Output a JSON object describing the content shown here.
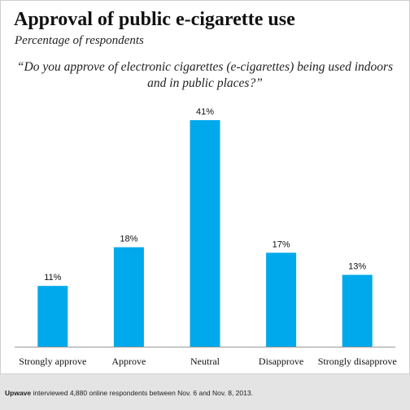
{
  "title": "Approval of public e-cigarette use",
  "subtitle": "Percentage of respondents",
  "question": "“Do you approve of electronic cigarettes (e-cigarettes) being used indoors and in public places?”",
  "footer": {
    "brand": "Upwave",
    "text": " interviewed 4,880 online respondents between Nov. 6 and Nov. 8, 2013."
  },
  "colors": {
    "bar": "#00a9ec",
    "axis": "#999999"
  },
  "chart_data": {
    "type": "bar",
    "categories": [
      "Strongly approve",
      "Approve",
      "Neutral",
      "Disapprove",
      "Strongly disapprove"
    ],
    "values": [
      11,
      18,
      41,
      17,
      13
    ],
    "value_labels": [
      "11%",
      "18%",
      "41%",
      "17%",
      "13%"
    ],
    "ylim": [
      0,
      41
    ],
    "title": "Approval of public e-cigarette use",
    "xlabel": "",
    "ylabel": "",
    "grid": false
  }
}
